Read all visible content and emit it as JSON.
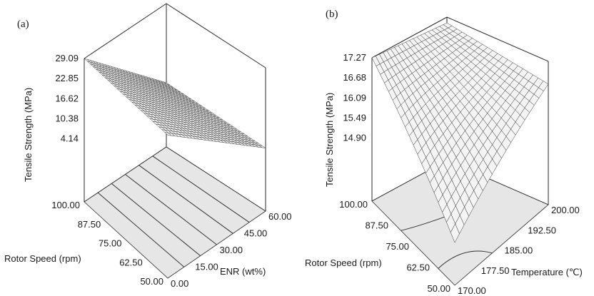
{
  "chart_data": [
    {
      "panel": "(a)",
      "type": "surface3d",
      "zlabel": "Tensile Strength (MPa)",
      "xlabel": "ENR (wt%)",
      "ylabel": "Rotor Speed (rpm)",
      "x_ticks": [
        "0.00",
        "15.00",
        "30.00",
        "45.00",
        "60.00"
      ],
      "y_ticks": [
        "50.00",
        "62.50",
        "75.00",
        "87.50",
        "100.00"
      ],
      "z_ticks": [
        "4.14",
        "10.38",
        "16.62",
        "22.85",
        "29.09"
      ],
      "xlim": [
        0,
        60
      ],
      "ylim": [
        50,
        100
      ],
      "zlim": [
        4.14,
        29.09
      ],
      "surface": {
        "corners": [
          {
            "x": 0,
            "y": 100,
            "z": 29.09
          },
          {
            "x": 60,
            "y": 100,
            "z": 4.5
          },
          {
            "x": 60,
            "y": 50,
            "z": 4.14
          },
          {
            "x": 0,
            "y": 50,
            "z": 29.0
          }
        ]
      }
    },
    {
      "panel": "(b)",
      "type": "surface3d",
      "zlabel": "Tensile Strength (MPa)",
      "xlabel": "Temperature (℃)",
      "ylabel": "Rotor Speed (rpm)",
      "x_ticks": [
        "170.00",
        "177.50",
        "185.00",
        "192.50",
        "200.00"
      ],
      "y_ticks": [
        "50.00",
        "62.50",
        "75.00",
        "87.50",
        "100.00"
      ],
      "z_ticks": [
        "14.90",
        "15.49",
        "16.09",
        "16.68",
        "17.27"
      ],
      "xlim": [
        170,
        200
      ],
      "ylim": [
        50,
        100
      ],
      "zlim": [
        14.9,
        17.27
      ],
      "surface": {
        "corners": [
          {
            "x": 170,
            "y": 100,
            "z": 17.27
          },
          {
            "x": 200,
            "y": 100,
            "z": 17.1
          },
          {
            "x": 200,
            "y": 50,
            "z": 16.6
          },
          {
            "x": 170,
            "y": 50,
            "z": 14.9
          }
        ],
        "saddle_z": 16.4
      }
    }
  ]
}
